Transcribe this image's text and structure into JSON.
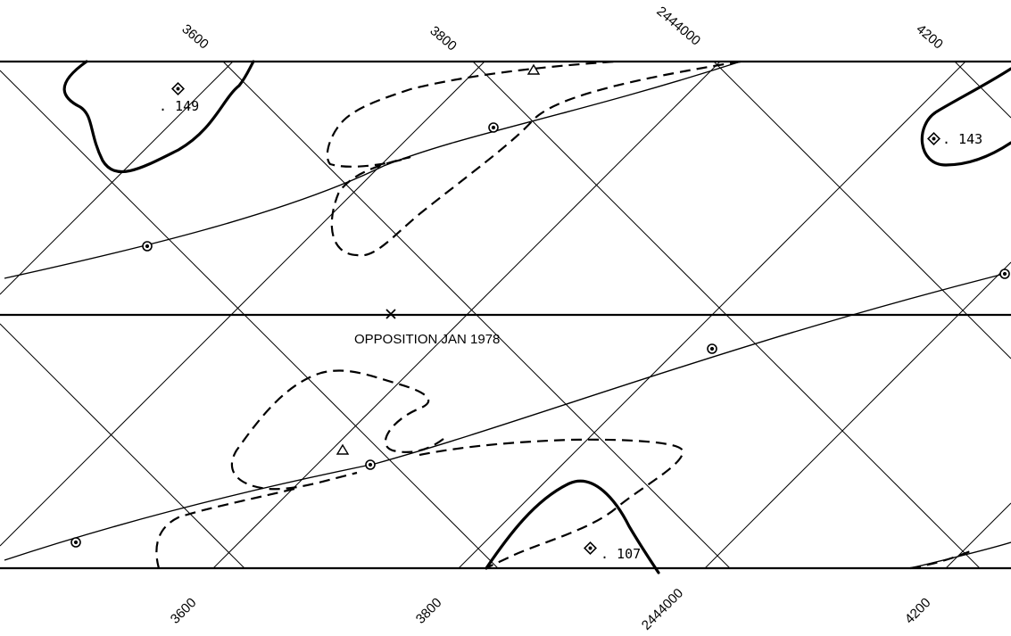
{
  "top_axis_labels": [
    "3600",
    "3800",
    "2444000",
    "4200"
  ],
  "bottom_axis_labels": [
    "3600",
    "3800",
    "2444000",
    "4200"
  ],
  "opposition_label": "OPPOSITION   JAN 1978",
  "markers": [
    {
      "symbol": "diamond",
      "label": ". 149"
    },
    {
      "symbol": "diamond",
      "label": ". 143"
    },
    {
      "symbol": "diamond",
      "label": ". 107"
    }
  ],
  "line_styles": {
    "solid_contour": "#000000",
    "dashed_contour": "#000000",
    "grid": "#000000"
  }
}
